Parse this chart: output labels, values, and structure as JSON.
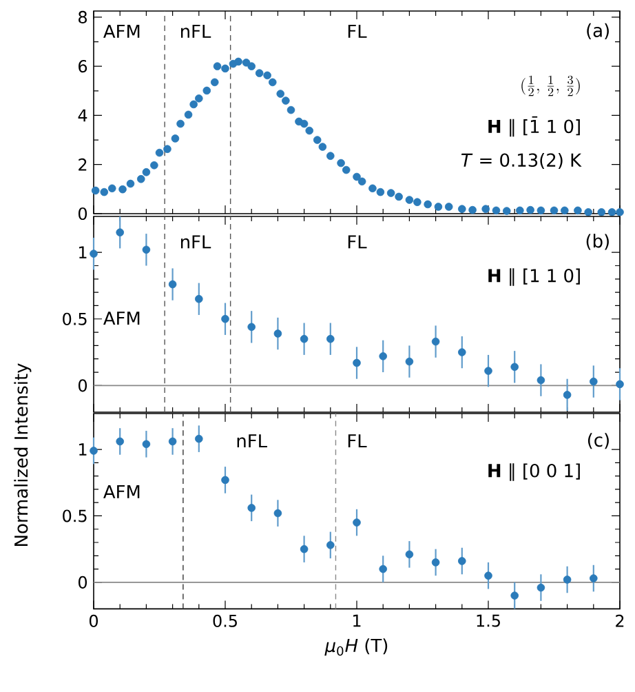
{
  "chart_data": [
    {
      "type": "scatter",
      "color": "#2b7bba",
      "marker": "circle",
      "x": [
        0.007,
        0.04,
        0.07,
        0.11,
        0.14,
        0.18,
        0.2,
        0.23,
        0.25,
        0.28,
        0.31,
        0.33,
        0.36,
        0.38,
        0.4,
        0.43,
        0.46,
        0.47,
        0.5,
        0.53,
        0.55,
        0.58,
        0.6,
        0.63,
        0.66,
        0.68,
        0.71,
        0.73,
        0.75,
        0.78,
        0.8,
        0.82,
        0.85,
        0.87,
        0.9,
        0.94,
        0.96,
        1.0,
        1.02,
        1.06,
        1.09,
        1.13,
        1.16,
        1.2,
        1.23,
        1.27,
        1.31,
        1.35,
        1.4,
        1.44,
        1.49,
        1.53,
        1.57,
        1.62,
        1.66,
        1.7,
        1.75,
        1.79,
        1.84,
        1.88,
        1.93,
        1.97,
        2.0
      ],
      "values": [
        0.94,
        0.88,
        1.03,
        0.99,
        1.22,
        1.41,
        1.69,
        1.97,
        2.48,
        2.63,
        3.06,
        3.66,
        4.03,
        4.45,
        4.69,
        5.01,
        5.35,
        6.0,
        5.91,
        6.1,
        6.19,
        6.15,
        6.0,
        5.72,
        5.63,
        5.35,
        4.88,
        4.6,
        4.22,
        3.75,
        3.66,
        3.38,
        3.0,
        2.72,
        2.35,
        2.06,
        1.78,
        1.5,
        1.31,
        1.03,
        0.88,
        0.84,
        0.69,
        0.56,
        0.47,
        0.38,
        0.28,
        0.28,
        0.19,
        0.15,
        0.19,
        0.13,
        0.11,
        0.13,
        0.15,
        0.13,
        0.13,
        0.13,
        0.13,
        0.06,
        0.06,
        0.06,
        0.06
      ],
      "xlim": [
        0,
        2
      ],
      "ylim": [
        0,
        8.25
      ],
      "xticks": [
        0,
        0.5,
        1,
        1.5,
        2
      ],
      "yticks": [
        0,
        2,
        4,
        6,
        8
      ],
      "tick_labels": "y",
      "ref_lines": [
        {
          "axis": "x",
          "value": 0.27,
          "color": "#555555",
          "line_style": "dashed"
        },
        {
          "axis": "x",
          "value": 0.52,
          "color": "#555555",
          "line_style": "dashed"
        }
      ],
      "annotations": [
        "AFM",
        "nFL",
        "FL",
        "(a)",
        "(\\frac{1}{2},\\, \\frac{1}{2},\\, \\frac{3}{2})",
        "**H** ∥ [1̄ 1 0]",
        "*T* = 0.13(2) K"
      ]
    },
    {
      "type": "scatter",
      "color": "#2b7bba",
      "marker": "circle",
      "ylabel": "Normalized Intensity",
      "x": [
        0,
        0.1,
        0.2,
        0.3,
        0.4,
        0.5,
        0.6,
        0.7,
        0.8,
        0.9,
        1.0,
        1.1,
        1.2,
        1.3,
        1.4,
        1.5,
        1.6,
        1.7,
        1.8,
        1.9,
        2.0
      ],
      "values": [
        0.99,
        1.15,
        1.02,
        0.76,
        0.65,
        0.5,
        0.44,
        0.39,
        0.35,
        0.35,
        0.17,
        0.22,
        0.18,
        0.33,
        0.25,
        0.11,
        0.14,
        0.04,
        -0.07,
        0.03,
        0.01
      ],
      "errors": [
        0.12,
        0.12,
        0.12,
        0.12,
        0.12,
        0.12,
        0.12,
        0.12,
        0.12,
        0.12,
        0.12,
        0.12,
        0.12,
        0.12,
        0.12,
        0.12,
        0.12,
        0.12,
        0.12,
        0.12,
        0.12
      ],
      "xlim": [
        0,
        2
      ],
      "ylim": [
        -0.2,
        1.27
      ],
      "xticks": [
        0,
        0.5,
        1,
        1.5,
        2
      ],
      "yticks": [
        0,
        0.5,
        1
      ],
      "tick_labels": "y",
      "ref_lines": [
        {
          "axis": "x",
          "value": 0.27,
          "color": "#555555",
          "line_style": "dashed"
        },
        {
          "axis": "x",
          "value": 0.52,
          "color": "#555555",
          "line_style": "dashed"
        },
        {
          "axis": "y",
          "value": 0,
          "color": "#888888",
          "line_style": "solid"
        }
      ],
      "annotations": [
        "AFM",
        "nFL",
        "FL",
        "(b)",
        "**H** ∥ [1 1 0]"
      ]
    },
    {
      "type": "scatter",
      "color": "#2b7bba",
      "marker": "circle",
      "xlabel": "*μ*$_{0}$*H* (T)",
      "x": [
        0,
        0.1,
        0.2,
        0.3,
        0.4,
        0.5,
        0.6,
        0.7,
        0.8,
        0.9,
        1.0,
        1.1,
        1.2,
        1.3,
        1.4,
        1.5,
        1.6,
        1.7,
        1.8,
        1.9
      ],
      "values": [
        0.99,
        1.06,
        1.04,
        1.06,
        1.08,
        0.77,
        0.56,
        0.52,
        0.25,
        0.28,
        0.45,
        0.1,
        0.21,
        0.15,
        0.16,
        0.05,
        -0.1,
        -0.04,
        0.02,
        0.03
      ],
      "errors": [
        0.1,
        0.1,
        0.1,
        0.1,
        0.1,
        0.1,
        0.1,
        0.1,
        0.1,
        0.1,
        0.1,
        0.1,
        0.1,
        0.1,
        0.1,
        0.1,
        0.1,
        0.1,
        0.1,
        0.1
      ],
      "xlim": [
        0,
        2
      ],
      "ylim": [
        -0.2,
        1.27
      ],
      "xticks": [
        0,
        0.5,
        1,
        1.5,
        2
      ],
      "yticks": [
        0,
        0.5,
        1
      ],
      "ref_lines": [
        {
          "axis": "x",
          "value": 0.34,
          "color": "#333333",
          "line_style": "dashed"
        },
        {
          "axis": "x",
          "value": 0.92,
          "color": "#888888",
          "line_style": "dashed"
        },
        {
          "axis": "y",
          "value": 0,
          "color": "#888888",
          "line_style": "solid"
        }
      ],
      "annotations": [
        "AFM",
        "nFL",
        "FL",
        "(c)",
        "**H** ∥ [0 0 1]"
      ]
    }
  ]
}
